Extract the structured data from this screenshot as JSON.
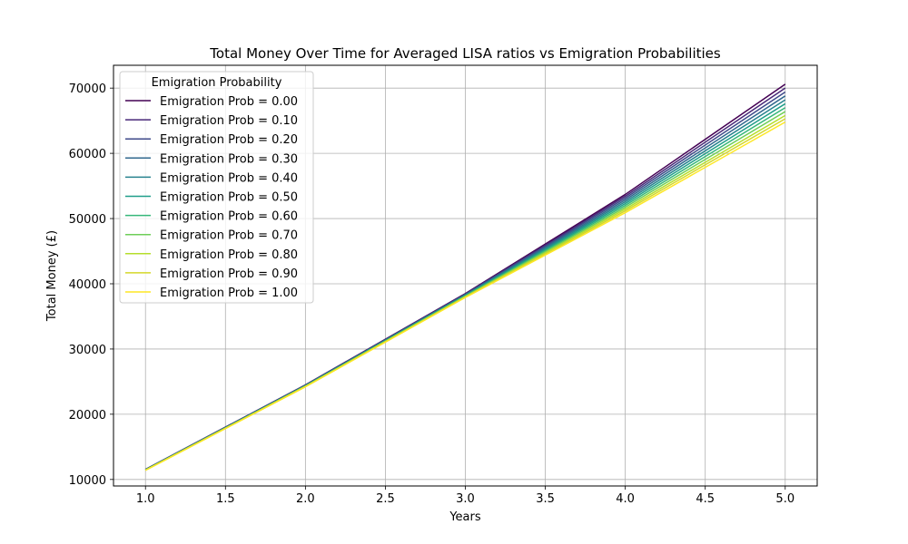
{
  "chart_data": {
    "type": "line",
    "title": "Total Money Over Time for Averaged LISA ratios vs Emigration Probabilities",
    "xlabel": "Years",
    "ylabel": "Total Money (£)",
    "xlim": [
      0.8,
      5.2
    ],
    "ylim": [
      9000,
      73500
    ],
    "x_ticks": [
      1.0,
      1.5,
      2.0,
      2.5,
      3.0,
      3.5,
      4.0,
      4.5,
      5.0
    ],
    "x_tick_labels": [
      "1.0",
      "1.5",
      "2.0",
      "2.5",
      "3.0",
      "3.5",
      "4.0",
      "4.5",
      "5.0"
    ],
    "y_ticks": [
      10000,
      20000,
      30000,
      40000,
      50000,
      60000,
      70000
    ],
    "y_tick_labels": [
      "10000",
      "20000",
      "30000",
      "40000",
      "50000",
      "60000",
      "70000"
    ],
    "grid": true,
    "legend": {
      "title": "Emigration Probability",
      "placement": "top-left"
    },
    "x": [
      1,
      2,
      3,
      4,
      5
    ],
    "series": [
      {
        "name": "Emigration Prob = 0.00",
        "color": "#440154",
        "values": [
          11550,
          24500,
          38500,
          53700,
          70600
        ]
      },
      {
        "name": "Emigration Prob = 0.10",
        "color": "#482878",
        "values": [
          11535,
          24470,
          38440,
          53420,
          70000
        ]
      },
      {
        "name": "Emigration Prob = 0.20",
        "color": "#3e4989",
        "values": [
          11520,
          24440,
          38380,
          53140,
          69400
        ]
      },
      {
        "name": "Emigration Prob = 0.30",
        "color": "#31688e",
        "values": [
          11505,
          24410,
          38320,
          52860,
          68800
        ]
      },
      {
        "name": "Emigration Prob = 0.40",
        "color": "#26828e",
        "values": [
          11490,
          24380,
          38260,
          52580,
          68200
        ]
      },
      {
        "name": "Emigration Prob = 0.50",
        "color": "#1f9e89",
        "values": [
          11475,
          24350,
          38200,
          52300,
          67600
        ]
      },
      {
        "name": "Emigration Prob = 0.60",
        "color": "#35b779",
        "values": [
          11460,
          24320,
          38140,
          52020,
          67000
        ]
      },
      {
        "name": "Emigration Prob = 0.70",
        "color": "#6ece58",
        "values": [
          11445,
          24290,
          38080,
          51740,
          66400
        ]
      },
      {
        "name": "Emigration Prob = 0.80",
        "color": "#b5de2b",
        "values": [
          11430,
          24260,
          38020,
          51460,
          65800
        ]
      },
      {
        "name": "Emigration Prob = 0.90",
        "color": "#d4d72a",
        "values": [
          11415,
          24230,
          37960,
          51180,
          65300
        ]
      },
      {
        "name": "Emigration Prob = 1.00",
        "color": "#fde725",
        "values": [
          11400,
          24200,
          37900,
          50900,
          64800
        ]
      }
    ]
  }
}
